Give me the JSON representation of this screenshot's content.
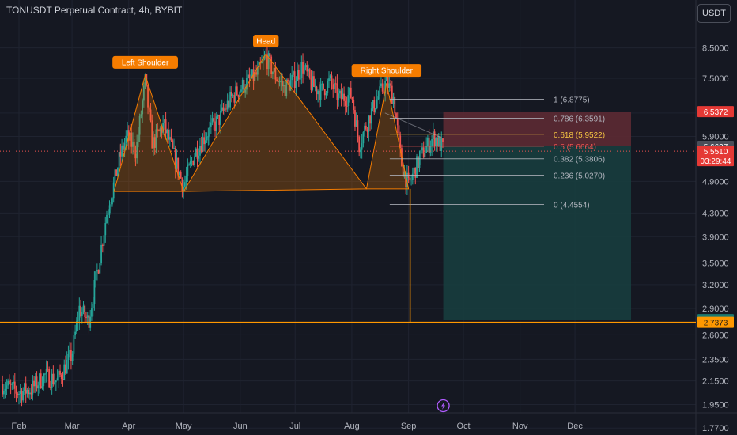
{
  "header": {
    "title": "TONUSDT Perpetual Contract, 4h, BYBIT",
    "currency": "USDT"
  },
  "colors": {
    "background": "#151822",
    "grid": "#1f2330",
    "up": "#26a69a",
    "down": "#ef5350",
    "pattern_orange": "#f57c00",
    "fib_line": "#b2b5be",
    "fib_highlight": "#f5c542",
    "stop_zone": "#5c2a33",
    "target_zone": "#173d3e",
    "support_line": "#ff9800",
    "lightning_icon": "#b05cff"
  },
  "chart_data": {
    "type": "candlestick",
    "scale": "log",
    "ylim": [
      1.67,
      9.5
    ],
    "y_ticks": [
      8.5,
      7.5,
      6.5,
      5.9,
      4.9,
      4.3,
      3.9,
      3.5,
      3.2,
      2.9,
      2.6,
      2.35,
      2.15,
      1.95,
      1.77
    ],
    "y_tick_labels": [
      "8.5000",
      "7.5000",
      "6.5000",
      "5.9000",
      "4.9000",
      "4.3000",
      "3.9000",
      "3.5000",
      "3.2000",
      "2.9000",
      "2.6000",
      "2.3500",
      "2.1500",
      "1.9500",
      "1.7700"
    ],
    "x_ticks": [
      "Feb",
      "Mar",
      "Apr",
      "May",
      "Jun",
      "Jul",
      "Aug",
      "Sep",
      "Oct",
      "Nov",
      "Dec"
    ],
    "price_path": [
      [
        "Jan 23",
        2.12
      ],
      [
        "Feb 1",
        2.05
      ],
      [
        "Feb 8",
        2.08
      ],
      [
        "Feb 15",
        2.2
      ],
      [
        "Feb 22",
        2.15
      ],
      [
        "Mar 1",
        2.4
      ],
      [
        "Mar 5",
        2.9
      ],
      [
        "Mar 10",
        2.75
      ],
      [
        "Mar 15",
        3.4
      ],
      [
        "Mar 20",
        4.3
      ],
      [
        "Mar 23",
        4.7
      ],
      [
        "Mar 27",
        5.4
      ],
      [
        "Mar 31",
        5.9
      ],
      [
        "Apr 5",
        5.55
      ],
      [
        "Apr 10",
        7.4
      ],
      [
        "Apr 14",
        5.7
      ],
      [
        "Apr 20",
        6.2
      ],
      [
        "Apr 26",
        5.4
      ],
      [
        "May 1",
        4.8
      ],
      [
        "May 7",
        5.5
      ],
      [
        "May 14",
        6.0
      ],
      [
        "May 20",
        6.3
      ],
      [
        "May 27",
        6.9
      ],
      [
        "Jun 3",
        7.3
      ],
      [
        "Jun 10",
        7.6
      ],
      [
        "Jun 15",
        8.2
      ],
      [
        "Jun 20",
        7.6
      ],
      [
        "Jun 25",
        7.2
      ],
      [
        "Jul 1",
        7.5
      ],
      [
        "Jul 5",
        7.9
      ],
      [
        "Jul 10",
        7.3
      ],
      [
        "Jul 15",
        7.1
      ],
      [
        "Jul 20",
        7.4
      ],
      [
        "Jul 25",
        6.9
      ],
      [
        "Aug 1",
        7.0
      ],
      [
        "Aug 5",
        5.7
      ],
      [
        "Aug 9",
        6.2
      ],
      [
        "Aug 14",
        6.8
      ],
      [
        "Aug 20",
        7.4
      ],
      [
        "Aug 24",
        6.9
      ],
      [
        "Aug 28",
        5.3
      ],
      [
        "Sep 1",
        4.8
      ],
      [
        "Sep 5",
        5.2
      ],
      [
        "Sep 10",
        5.6
      ],
      [
        "Sep 15",
        5.9
      ],
      [
        "Sep 20",
        5.6
      ]
    ],
    "pattern": {
      "labels": [
        "Left Shoulder",
        "Head",
        "Right Shoulder"
      ],
      "points": [
        [
          "Mar 24",
          4.7
        ],
        [
          "Apr 10",
          7.6
        ],
        [
          "May 1",
          4.7
        ],
        [
          "Jun 15",
          8.3
        ],
        [
          "Aug 9",
          4.75
        ],
        [
          "Aug 20",
          7.35
        ],
        [
          "Sep 1",
          4.75
        ]
      ]
    },
    "fib_levels": [
      {
        "level": "1",
        "price": "6.8775"
      },
      {
        "level": "0.786",
        "price": "6.3591"
      },
      {
        "level": "0.618",
        "price": "5.9522"
      },
      {
        "level": "0.5",
        "price": "5.6664"
      },
      {
        "level": "0.382",
        "price": "5.3806"
      },
      {
        "level": "0.236",
        "price": "5.0270"
      },
      {
        "level": "0",
        "price": "4.4554"
      }
    ],
    "position": {
      "entry": 5.6637,
      "stop": 6.5372,
      "target": 2.7693
    },
    "support_level": 2.7373,
    "price_tags": [
      {
        "text": "6.5372",
        "value": 6.5372,
        "bg": "#e53935",
        "fg": "#ffffff"
      },
      {
        "text": "5.6637",
        "value": 5.6637,
        "bg": "#4a4e59",
        "fg": "#ffffff"
      },
      {
        "text": "5.5510",
        "value": 5.551,
        "bg": "#e53935",
        "fg": "#ffffff",
        "sub": "03:29:44"
      },
      {
        "text": "2.7693",
        "value": 2.7693,
        "bg": "#1b7a70",
        "fg": "#ffffff"
      },
      {
        "text": "2.7373",
        "value": 2.7373,
        "bg": "#ff9800",
        "fg": "#1a1a1a"
      }
    ]
  }
}
